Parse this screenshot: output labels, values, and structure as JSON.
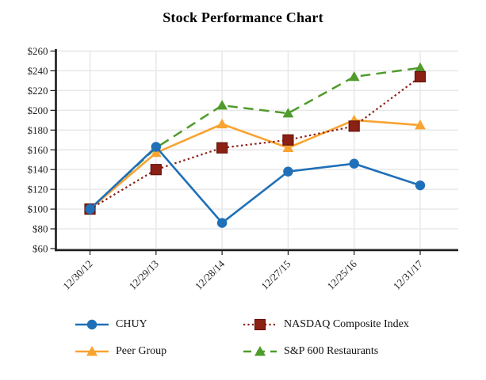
{
  "chart_data": {
    "type": "line",
    "title": "Stock Performance Chart",
    "categories": [
      "12/30/12",
      "12/29/13",
      "12/28/14",
      "12/27/15",
      "12/25/16",
      "12/31/17"
    ],
    "series": [
      {
        "name": "CHUY",
        "color": "#1F70B8",
        "marker": "circle",
        "line": "solid",
        "values": [
          100,
          163,
          86,
          138,
          146,
          124
        ]
      },
      {
        "name": "NASDAQ Composite Index",
        "color": "#8B2015",
        "border": "#66120A",
        "marker": "square",
        "line": "dotted",
        "values": [
          100,
          140,
          162,
          170,
          184,
          234
        ]
      },
      {
        "name": "Peer Group",
        "color": "#F9A331",
        "marker": "triangle",
        "line": "solid",
        "values": [
          100,
          157,
          186,
          162,
          190,
          185
        ]
      },
      {
        "name": "S&P 600 Restaurants",
        "color": "#4F9B2C",
        "marker": "triangle",
        "line": "dashed",
        "values": [
          100,
          162,
          205,
          197,
          234,
          243
        ]
      }
    ],
    "ylim": [
      60,
      260
    ],
    "ytick_step": 20,
    "ytick_prefix": "$",
    "ytick_labels": [
      "$60",
      "$80",
      "$100",
      "$120",
      "$140",
      "$160",
      "$180",
      "$200",
      "$220",
      "$240",
      "$260"
    ],
    "grid": true,
    "legend_position": "bottom",
    "axis_color": "#1A1A1A",
    "gridline_color": "#E6E6E6",
    "label_color": "#222222"
  }
}
